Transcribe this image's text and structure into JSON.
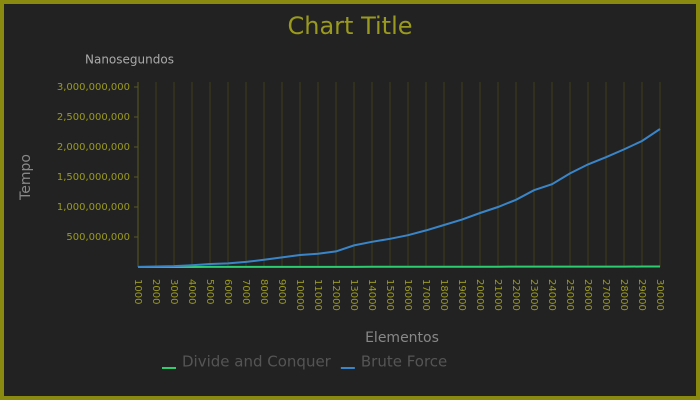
{
  "chart_data": {
    "type": "line",
    "title": "Chart Title",
    "y_unit": "Nanosegundos",
    "ylabel": "Tempo",
    "xlabel": "Elementos",
    "categories": [
      "1000",
      "2000",
      "3000",
      "4000",
      "5000",
      "6000",
      "7000",
      "8000",
      "9000",
      "10000",
      "11000",
      "12000",
      "13000",
      "14000",
      "15000",
      "16000",
      "17000",
      "18000",
      "19000",
      "20000",
      "21000",
      "22000",
      "23000",
      "24000",
      "25000",
      "26000",
      "27000",
      "28000",
      "29000",
      "30000"
    ],
    "series": [
      {
        "name": "Divide and Conquer",
        "color": "#2ecc71",
        "values": [
          200000,
          400000,
          600000,
          900000,
          1100000,
          1300000,
          1600000,
          1800000,
          2100000,
          2300000,
          2600000,
          2800000,
          3100000,
          3300000,
          3600000,
          3900000,
          4100000,
          4400000,
          4700000,
          4900000,
          5200000,
          5500000,
          5700000,
          6000000,
          6300000,
          6600000,
          6800000,
          7100000,
          7400000,
          7700000
        ]
      },
      {
        "name": "Brute Force",
        "color": "#3a85c8",
        "values": [
          2000000,
          8000000,
          15000000,
          30000000,
          50000000,
          60000000,
          85000000,
          120000000,
          160000000,
          200000000,
          220000000,
          260000000,
          360000000,
          420000000,
          470000000,
          530000000,
          610000000,
          700000000,
          790000000,
          900000000,
          1000000000,
          1120000000,
          1280000000,
          1380000000,
          1560000000,
          1710000000,
          1830000000,
          1960000000,
          2100000000,
          2300000000
        ]
      }
    ],
    "ylim": [
      0,
      3000000000
    ],
    "yticks": [
      {
        "value": 500000000,
        "label": "500,000,000"
      },
      {
        "value": 1000000000,
        "label": "1,000,000,000"
      },
      {
        "value": 1500000000,
        "label": "1,500,000,000"
      },
      {
        "value": 2000000000,
        "label": "2,000,000,000"
      },
      {
        "value": 2500000000,
        "label": "2,500,000,000"
      },
      {
        "value": 3000000000,
        "label": "3,000,000,000"
      }
    ],
    "grid": true
  }
}
